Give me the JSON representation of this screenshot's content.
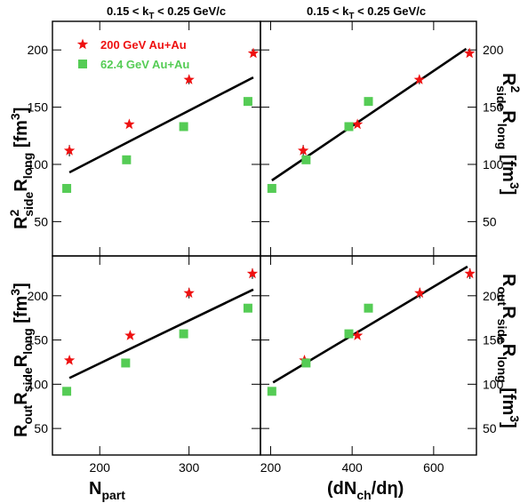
{
  "colors": {
    "star_series": "#ee1111",
    "square_series": "#55cc55",
    "fit_line": "#000000",
    "axes": "#000000"
  },
  "titles": {
    "left": "0.15 < k_T < 0.25 GeV/c",
    "right": "0.15 < k_T < 0.25 GeV/c"
  },
  "legend": {
    "entries": [
      {
        "label": "200 GeV Au+Au",
        "marker": "star",
        "color": "#ee1111"
      },
      {
        "label": "62.4 GeV Au+Au",
        "marker": "square",
        "color": "#55cc55"
      }
    ]
  },
  "chart_data": [
    {
      "id": "top-left",
      "type": "scatter",
      "xlabel": "",
      "ylabel": "R²_side R_long [fm³]",
      "xlim": [
        147,
        380
      ],
      "ylim": [
        20,
        225
      ],
      "xticks": [
        200,
        300
      ],
      "yticks": [
        50,
        100,
        150,
        200
      ],
      "yticklabels": [
        "50",
        "100",
        "150",
        "200"
      ],
      "series": [
        {
          "name": "200 GeV Au+Au",
          "marker": "star",
          "x": [
            166,
            233,
            300,
            372
          ],
          "y": [
            112,
            135,
            174,
            197
          ],
          "err": [
            5,
            0,
            4,
            2
          ]
        },
        {
          "name": "62.4 GeV Au+Au",
          "marker": "square",
          "x": [
            163,
            230,
            294,
            366
          ],
          "y": [
            79,
            104,
            133,
            155
          ],
          "err": [
            0,
            0,
            0,
            0
          ]
        }
      ],
      "fit": {
        "x": [
          166,
          372
        ],
        "y": [
          93,
          176
        ]
      }
    },
    {
      "id": "top-right",
      "type": "scatter",
      "xlabel": "",
      "ylabel": "R²_side R_long [fm³]",
      "xlim": [
        175,
        705
      ],
      "ylim": [
        20,
        225
      ],
      "xticks": [
        200,
        400,
        600
      ],
      "yticks": [
        50,
        100,
        150,
        200
      ],
      "yticklabels": [
        "50",
        "100",
        "150",
        "200"
      ],
      "series": [
        {
          "name": "200 GeV Au+Au",
          "marker": "star",
          "x": [
            280,
            413,
            565,
            688
          ],
          "y": [
            112,
            135,
            174,
            197
          ],
          "err": [
            5,
            0,
            4,
            2
          ]
        },
        {
          "name": "62.4 GeV Au+Au",
          "marker": "square",
          "x": [
            203,
            287,
            392,
            440
          ],
          "y": [
            79,
            104,
            133,
            155
          ],
          "err": [
            0,
            0,
            0,
            0
          ]
        }
      ],
      "fit": {
        "x": [
          203,
          680
        ],
        "y": [
          86,
          201
        ]
      }
    },
    {
      "id": "bottom-left",
      "type": "scatter",
      "xlabel": "N_part",
      "ylabel": "R_out R_side R_long [fm³]",
      "xlim": [
        147,
        380
      ],
      "ylim": [
        20,
        245
      ],
      "xticks": [
        200,
        300
      ],
      "xticklabels": [
        "200",
        "300"
      ],
      "yticks": [
        50,
        100,
        150,
        200
      ],
      "yticklabels": [
        "50",
        "100",
        "150",
        "200"
      ],
      "series": [
        {
          "name": "200 GeV Au+Au",
          "marker": "star",
          "x": [
            166,
            234,
            300,
            371
          ],
          "y": [
            127,
            155,
            203,
            225
          ],
          "err": [
            0,
            0,
            6,
            6
          ]
        },
        {
          "name": "62.4 GeV Au+Au",
          "marker": "square",
          "x": [
            163,
            229,
            294,
            366
          ],
          "y": [
            92,
            124,
            157,
            186
          ],
          "err": [
            0,
            0,
            0,
            0
          ]
        }
      ],
      "fit": {
        "x": [
          166,
          372
        ],
        "y": [
          107,
          207
        ]
      }
    },
    {
      "id": "bottom-right",
      "type": "scatter",
      "xlabel": "(dN_ch/dη)",
      "ylabel": "R_out R_side R_long [fm³]",
      "xlim": [
        175,
        705
      ],
      "ylim": [
        20,
        245
      ],
      "xticks": [
        200,
        400,
        600
      ],
      "xticklabels": [
        "200",
        "400",
        "600"
      ],
      "yticks": [
        50,
        100,
        150,
        200
      ],
      "yticklabels": [
        "50",
        "100",
        "150",
        "200"
      ],
      "series": [
        {
          "name": "200 GeV Au+Au",
          "marker": "star",
          "x": [
            283,
            413,
            566,
            689
          ],
          "y": [
            127,
            155,
            203,
            225
          ],
          "err": [
            0,
            0,
            6,
            6
          ]
        },
        {
          "name": "62.4 GeV Au+Au",
          "marker": "square",
          "x": [
            203,
            287,
            392,
            440
          ],
          "y": [
            92,
            124,
            157,
            186
          ],
          "err": [
            0,
            0,
            0,
            0
          ]
        }
      ],
      "fit": {
        "x": [
          206,
          683
        ],
        "y": [
          102,
          233
        ]
      }
    }
  ]
}
